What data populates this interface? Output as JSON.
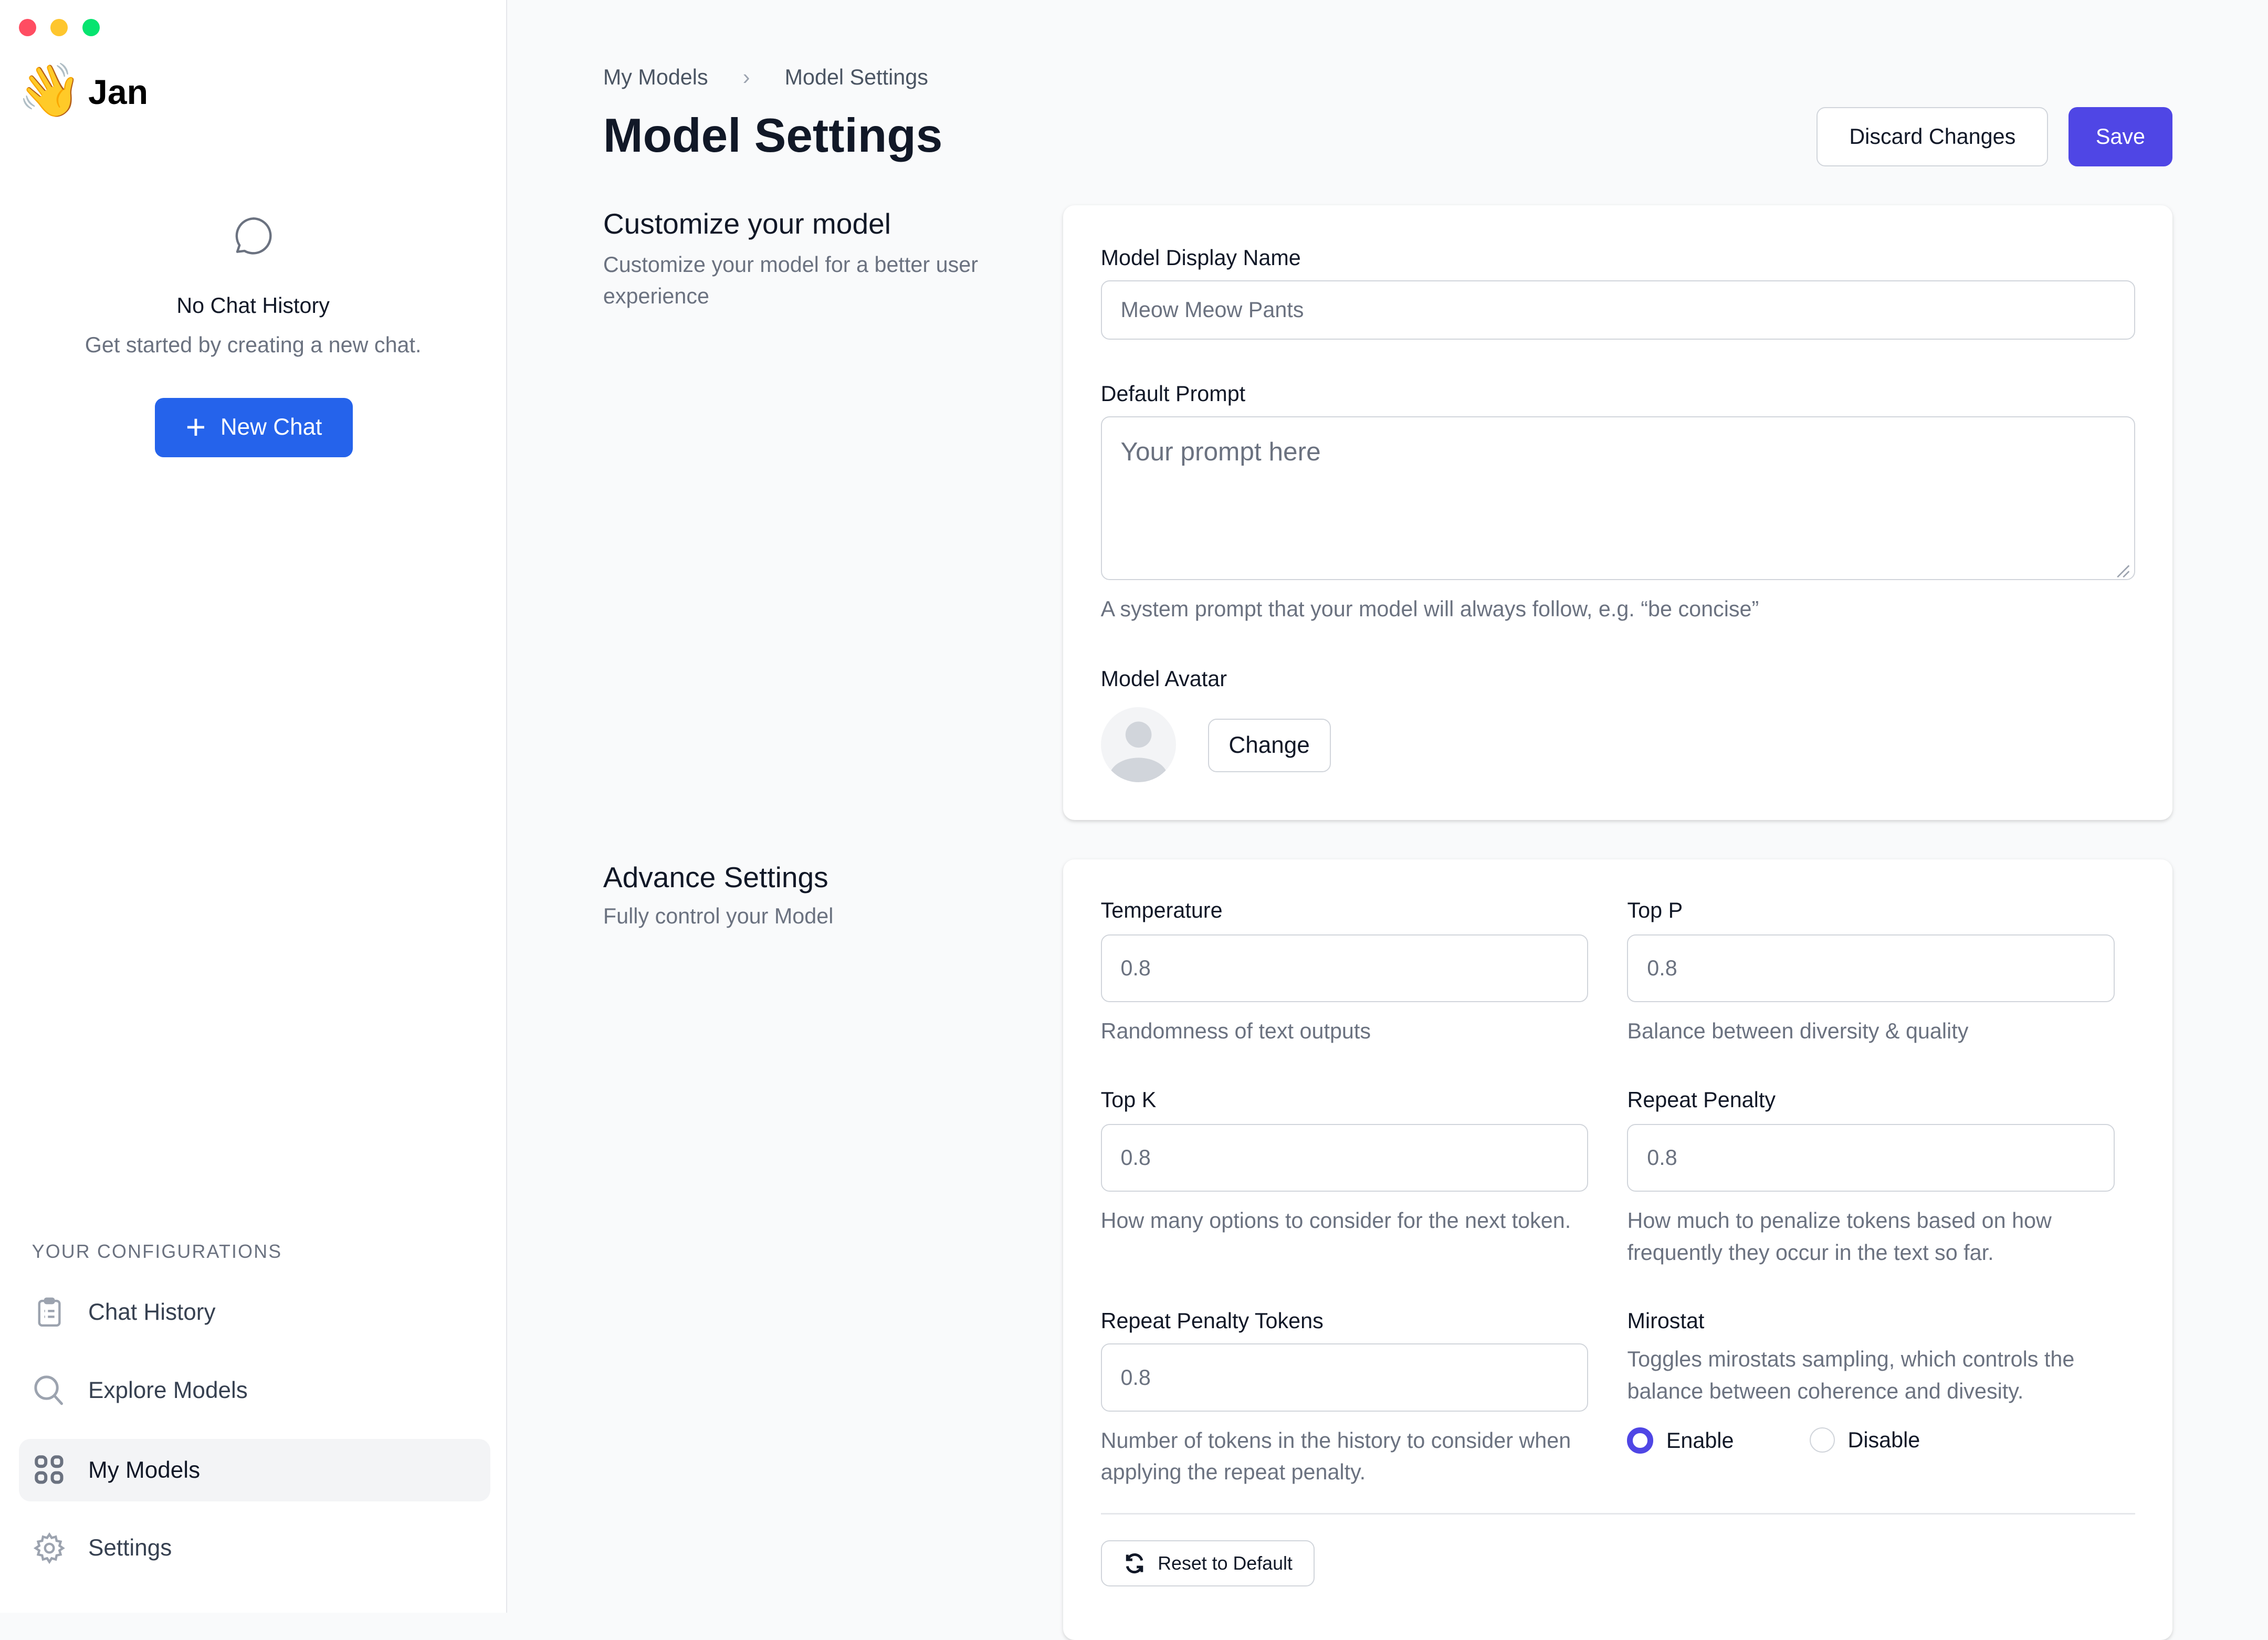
{
  "window": {
    "controls": {
      "close_color": "#ff5f57",
      "minimize_color": "#febc2e",
      "maximize_color": "#28c840"
    }
  },
  "sidebar": {
    "app_name": "Jan",
    "logo_icon": "waving-hand-emoji",
    "empty_state": {
      "icon": "chat-bubble-icon",
      "title": "No Chat History",
      "subtitle": "Get started by creating a new chat."
    },
    "new_chat_label": "New Chat",
    "section_title": "YOUR CONFIGURATIONS",
    "items": [
      {
        "label": "Chat History",
        "icon": "clipboard-list-icon",
        "active": false
      },
      {
        "label": "Explore Models",
        "icon": "search-icon",
        "active": false
      },
      {
        "label": "My Models",
        "icon": "grid-icon",
        "active": true
      },
      {
        "label": "Settings",
        "icon": "gear-icon",
        "active": false
      }
    ]
  },
  "header": {
    "breadcrumb": [
      "My Models",
      "Model Settings"
    ],
    "title": "Model Settings",
    "discard_label": "Discard Changes",
    "save_label": "Save",
    "accent": "#4f46e5"
  },
  "customize": {
    "title": "Customize your model",
    "subtitle": "Customize your model for a better user experience",
    "display_name_label": "Model Display Name",
    "display_name_value": "Meow Meow Pants",
    "prompt_label": "Default Prompt",
    "prompt_placeholder": "Your prompt here",
    "prompt_help": "A system prompt that your model will always follow, e.g. “be concise”",
    "avatar_label": "Model Avatar",
    "change_label": "Change"
  },
  "advanced": {
    "title": "Advance Settings",
    "subtitle": "Fully control your Model",
    "temperature": {
      "label": "Temperature",
      "value": "0.8",
      "help": "Randomness of text outputs"
    },
    "top_p": {
      "label": "Top P",
      "value": "0.8",
      "help": "Balance between diversity & quality"
    },
    "top_k": {
      "label": "Top K",
      "value": "0.8",
      "help": "How many options to consider for the next token."
    },
    "repeat_penalty": {
      "label": "Repeat Penalty",
      "value": "0.8",
      "help": "How much to penalize tokens based on how frequently they occur in the text so far."
    },
    "repeat_penalty_tokens": {
      "label": "Repeat Penalty Tokens",
      "value": "0.8",
      "help": "Number of tokens in the history to consider when applying the repeat penalty."
    },
    "mirostat": {
      "label": "Mirostat",
      "help": "Toggles mirostats sampling, which controls the balance between coherence and divesity.",
      "options": [
        "Enable",
        "Disable"
      ],
      "selected": "Enable"
    },
    "reset_label": "Reset to Default"
  }
}
